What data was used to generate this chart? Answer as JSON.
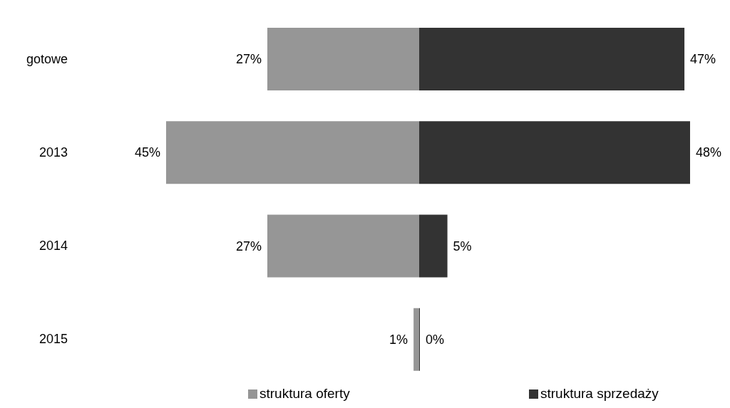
{
  "chart_data": [
    {
      "type": "bar",
      "orientation": "horizontal",
      "categories": [
        "gotowe",
        "2013",
        "2014",
        "2015"
      ],
      "series": [
        {
          "name": "struktura oferty",
          "color": "#969696",
          "values": [
            27,
            45,
            27,
            1
          ],
          "value_labels": [
            "27%",
            "45%",
            "27%",
            "1%"
          ]
        }
      ],
      "xlim": [
        45,
        0
      ],
      "tick_labels": "y",
      "legend": "bottom"
    },
    {
      "type": "bar",
      "orientation": "horizontal",
      "categories": [
        null,
        null,
        null,
        null
      ],
      "series": [
        {
          "name": "struktura sprzedaży",
          "color": "#333333",
          "values": [
            47,
            48,
            5,
            0
          ],
          "value_labels": [
            "47%",
            "48%",
            "5%",
            "0%"
          ]
        }
      ],
      "xlim": [
        0,
        48
      ],
      "tick_labels": false,
      "legend": "bottom"
    }
  ]
}
